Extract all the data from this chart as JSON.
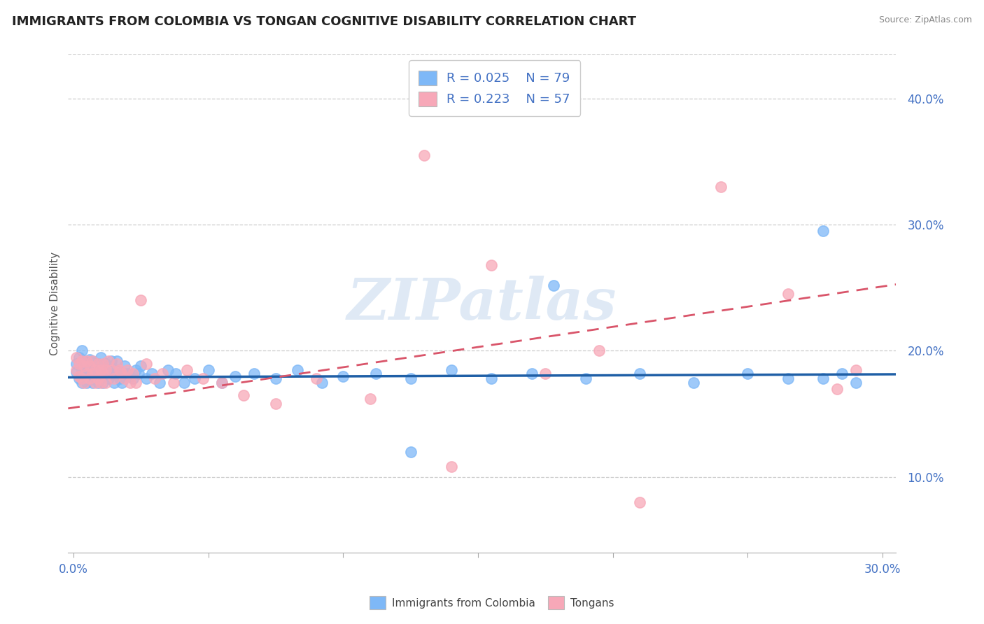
{
  "title": "IMMIGRANTS FROM COLOMBIA VS TONGAN COGNITIVE DISABILITY CORRELATION CHART",
  "source": "Source: ZipAtlas.com",
  "ylabel": "Cognitive Disability",
  "xlim": [
    -0.002,
    0.305
  ],
  "ylim": [
    0.04,
    0.435
  ],
  "colombia_color": "#7eb8f7",
  "tongan_color": "#f7a8b8",
  "colombia_line_color": "#1f5fa6",
  "tongan_line_color": "#d9556a",
  "R_colombia": 0.025,
  "N_colombia": 79,
  "R_tongan": 0.223,
  "N_tongan": 57,
  "watermark": "ZIPatlas",
  "colombia_x": [
    0.001,
    0.001,
    0.002,
    0.002,
    0.003,
    0.003,
    0.003,
    0.004,
    0.004,
    0.004,
    0.005,
    0.005,
    0.005,
    0.006,
    0.006,
    0.006,
    0.007,
    0.007,
    0.007,
    0.008,
    0.008,
    0.009,
    0.009,
    0.009,
    0.01,
    0.01,
    0.01,
    0.011,
    0.011,
    0.012,
    0.012,
    0.013,
    0.013,
    0.014,
    0.015,
    0.015,
    0.016,
    0.016,
    0.017,
    0.017,
    0.018,
    0.019,
    0.02,
    0.021,
    0.022,
    0.023,
    0.024,
    0.025,
    0.027,
    0.029,
    0.032,
    0.035,
    0.038,
    0.041,
    0.045,
    0.05,
    0.055,
    0.06,
    0.067,
    0.075,
    0.083,
    0.092,
    0.1,
    0.112,
    0.125,
    0.14,
    0.155,
    0.17,
    0.19,
    0.21,
    0.23,
    0.25,
    0.265,
    0.278,
    0.285,
    0.29,
    0.278,
    0.178,
    0.125
  ],
  "colombia_y": [
    0.19,
    0.183,
    0.195,
    0.178,
    0.2,
    0.185,
    0.175,
    0.192,
    0.178,
    0.183,
    0.19,
    0.175,
    0.182,
    0.188,
    0.178,
    0.193,
    0.182,
    0.192,
    0.175,
    0.185,
    0.178,
    0.19,
    0.183,
    0.175,
    0.188,
    0.178,
    0.195,
    0.182,
    0.175,
    0.19,
    0.183,
    0.185,
    0.178,
    0.192,
    0.182,
    0.175,
    0.185,
    0.192,
    0.178,
    0.182,
    0.175,
    0.188,
    0.182,
    0.18,
    0.178,
    0.185,
    0.182,
    0.188,
    0.178,
    0.182,
    0.175,
    0.185,
    0.182,
    0.175,
    0.178,
    0.185,
    0.175,
    0.18,
    0.182,
    0.178,
    0.185,
    0.175,
    0.18,
    0.182,
    0.178,
    0.185,
    0.178,
    0.182,
    0.178,
    0.182,
    0.175,
    0.182,
    0.178,
    0.295,
    0.182,
    0.175,
    0.178,
    0.252,
    0.12
  ],
  "tongan_x": [
    0.001,
    0.001,
    0.002,
    0.002,
    0.003,
    0.003,
    0.004,
    0.004,
    0.005,
    0.005,
    0.006,
    0.006,
    0.007,
    0.007,
    0.008,
    0.008,
    0.009,
    0.009,
    0.01,
    0.01,
    0.011,
    0.011,
    0.012,
    0.012,
    0.013,
    0.014,
    0.015,
    0.016,
    0.017,
    0.018,
    0.019,
    0.02,
    0.021,
    0.022,
    0.023,
    0.025,
    0.027,
    0.03,
    0.033,
    0.037,
    0.042,
    0.048,
    0.055,
    0.063,
    0.075,
    0.09,
    0.11,
    0.14,
    0.175,
    0.21,
    0.24,
    0.265,
    0.283,
    0.29,
    0.13,
    0.155,
    0.195
  ],
  "tongan_y": [
    0.195,
    0.185,
    0.19,
    0.18,
    0.192,
    0.178,
    0.188,
    0.175,
    0.192,
    0.182,
    0.188,
    0.178,
    0.192,
    0.182,
    0.185,
    0.175,
    0.19,
    0.178,
    0.185,
    0.175,
    0.19,
    0.182,
    0.185,
    0.175,
    0.192,
    0.185,
    0.178,
    0.19,
    0.185,
    0.182,
    0.178,
    0.185,
    0.175,
    0.182,
    0.175,
    0.24,
    0.19,
    0.178,
    0.182,
    0.175,
    0.185,
    0.178,
    0.175,
    0.165,
    0.158,
    0.178,
    0.162,
    0.108,
    0.182,
    0.08,
    0.33,
    0.245,
    0.17,
    0.185,
    0.355,
    0.268,
    0.2
  ]
}
